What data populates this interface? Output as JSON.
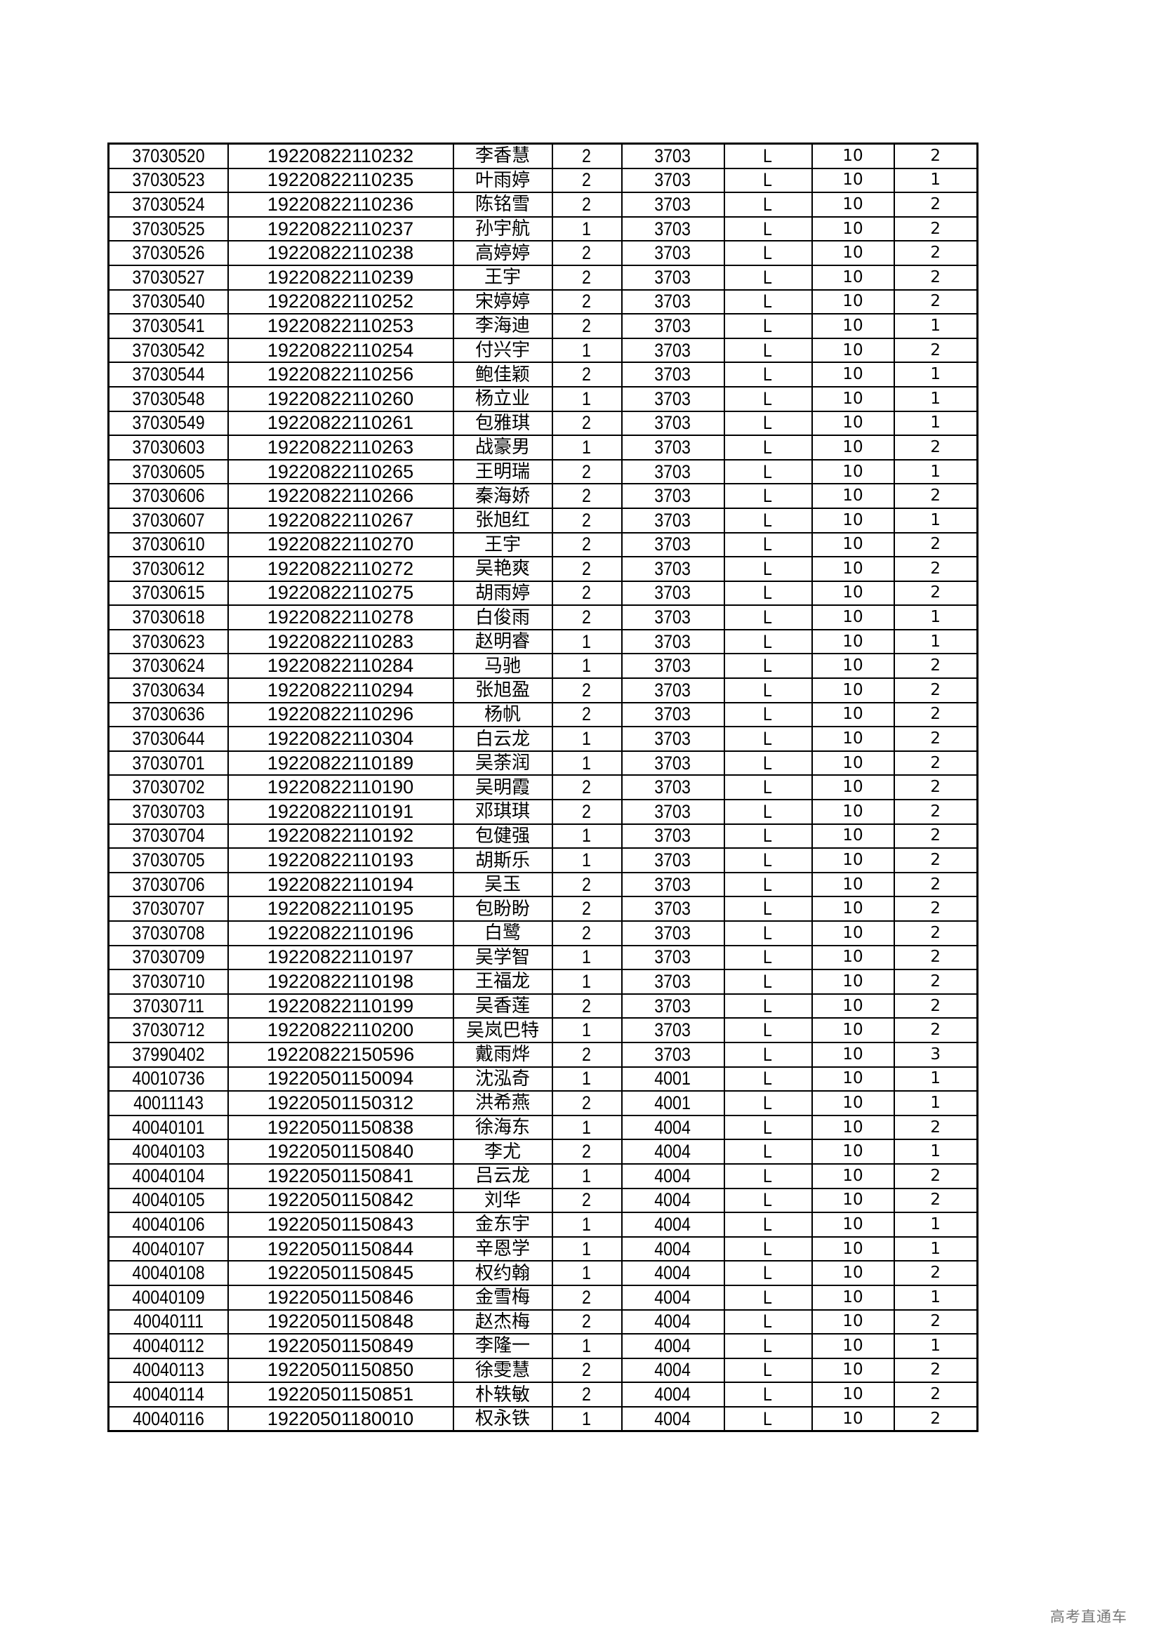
{
  "table": {
    "rows": [
      [
        "37030520",
        "19220822110232",
        "李香慧",
        "2",
        "3703",
        "L",
        "10",
        "2"
      ],
      [
        "37030523",
        "19220822110235",
        "叶雨婷",
        "2",
        "3703",
        "L",
        "10",
        "1"
      ],
      [
        "37030524",
        "19220822110236",
        "陈铭雪",
        "2",
        "3703",
        "L",
        "10",
        "2"
      ],
      [
        "37030525",
        "19220822110237",
        "孙宇航",
        "1",
        "3703",
        "L",
        "10",
        "2"
      ],
      [
        "37030526",
        "19220822110238",
        "高婷婷",
        "2",
        "3703",
        "L",
        "10",
        "2"
      ],
      [
        "37030527",
        "19220822110239",
        "王宇",
        "2",
        "3703",
        "L",
        "10",
        "2"
      ],
      [
        "37030540",
        "19220822110252",
        "宋婷婷",
        "2",
        "3703",
        "L",
        "10",
        "2"
      ],
      [
        "37030541",
        "19220822110253",
        "李海迪",
        "2",
        "3703",
        "L",
        "10",
        "1"
      ],
      [
        "37030542",
        "19220822110254",
        "付兴宇",
        "1",
        "3703",
        "L",
        "10",
        "2"
      ],
      [
        "37030544",
        "19220822110256",
        "鲍佳颖",
        "2",
        "3703",
        "L",
        "10",
        "1"
      ],
      [
        "37030548",
        "19220822110260",
        "杨立业",
        "1",
        "3703",
        "L",
        "10",
        "1"
      ],
      [
        "37030549",
        "19220822110261",
        "包雅琪",
        "2",
        "3703",
        "L",
        "10",
        "1"
      ],
      [
        "37030603",
        "19220822110263",
        "战豪男",
        "1",
        "3703",
        "L",
        "10",
        "2"
      ],
      [
        "37030605",
        "19220822110265",
        "王明瑞",
        "2",
        "3703",
        "L",
        "10",
        "1"
      ],
      [
        "37030606",
        "19220822110266",
        "秦海娇",
        "2",
        "3703",
        "L",
        "10",
        "2"
      ],
      [
        "37030607",
        "19220822110267",
        "张旭红",
        "2",
        "3703",
        "L",
        "10",
        "1"
      ],
      [
        "37030610",
        "19220822110270",
        "王宇",
        "2",
        "3703",
        "L",
        "10",
        "2"
      ],
      [
        "37030612",
        "19220822110272",
        "吴艳爽",
        "2",
        "3703",
        "L",
        "10",
        "2"
      ],
      [
        "37030615",
        "19220822110275",
        "胡雨婷",
        "2",
        "3703",
        "L",
        "10",
        "2"
      ],
      [
        "37030618",
        "19220822110278",
        "白俊雨",
        "2",
        "3703",
        "L",
        "10",
        "1"
      ],
      [
        "37030623",
        "19220822110283",
        "赵明睿",
        "1",
        "3703",
        "L",
        "10",
        "1"
      ],
      [
        "37030624",
        "19220822110284",
        "马驰",
        "1",
        "3703",
        "L",
        "10",
        "2"
      ],
      [
        "37030634",
        "19220822110294",
        "张旭盈",
        "2",
        "3703",
        "L",
        "10",
        "2"
      ],
      [
        "37030636",
        "19220822110296",
        "杨帆",
        "2",
        "3703",
        "L",
        "10",
        "2"
      ],
      [
        "37030644",
        "19220822110304",
        "白云龙",
        "1",
        "3703",
        "L",
        "10",
        "2"
      ],
      [
        "37030701",
        "19220822110189",
        "吴荼润",
        "1",
        "3703",
        "L",
        "10",
        "2"
      ],
      [
        "37030702",
        "19220822110190",
        "吴明霞",
        "2",
        "3703",
        "L",
        "10",
        "2"
      ],
      [
        "37030703",
        "19220822110191",
        "邓琪琪",
        "2",
        "3703",
        "L",
        "10",
        "2"
      ],
      [
        "37030704",
        "19220822110192",
        "包健强",
        "1",
        "3703",
        "L",
        "10",
        "2"
      ],
      [
        "37030705",
        "19220822110193",
        "胡斯乐",
        "1",
        "3703",
        "L",
        "10",
        "2"
      ],
      [
        "37030706",
        "19220822110194",
        "吴玉",
        "2",
        "3703",
        "L",
        "10",
        "2"
      ],
      [
        "37030707",
        "19220822110195",
        "包盼盼",
        "2",
        "3703",
        "L",
        "10",
        "2"
      ],
      [
        "37030708",
        "19220822110196",
        "白鹭",
        "2",
        "3703",
        "L",
        "10",
        "2"
      ],
      [
        "37030709",
        "19220822110197",
        "吴学智",
        "1",
        "3703",
        "L",
        "10",
        "2"
      ],
      [
        "37030710",
        "19220822110198",
        "王福龙",
        "1",
        "3703",
        "L",
        "10",
        "2"
      ],
      [
        "37030711",
        "19220822110199",
        "吴香莲",
        "2",
        "3703",
        "L",
        "10",
        "2"
      ],
      [
        "37030712",
        "19220822110200",
        "吴岚巴特",
        "1",
        "3703",
        "L",
        "10",
        "2"
      ],
      [
        "37990402",
        "19220822150596",
        "戴雨烨",
        "2",
        "3703",
        "L",
        "10",
        "3"
      ],
      [
        "40010736",
        "19220501150094",
        "沈泓奇",
        "1",
        "4001",
        "L",
        "10",
        "1"
      ],
      [
        "40011143",
        "19220501150312",
        "洪希燕",
        "2",
        "4001",
        "L",
        "10",
        "1"
      ],
      [
        "40040101",
        "19220501150838",
        "徐海东",
        "1",
        "4004",
        "L",
        "10",
        "2"
      ],
      [
        "40040103",
        "19220501150840",
        "李尤",
        "2",
        "4004",
        "L",
        "10",
        "1"
      ],
      [
        "40040104",
        "19220501150841",
        "吕云龙",
        "1",
        "4004",
        "L",
        "10",
        "2"
      ],
      [
        "40040105",
        "19220501150842",
        "刘华",
        "2",
        "4004",
        "L",
        "10",
        "2"
      ],
      [
        "40040106",
        "19220501150843",
        "金东宇",
        "1",
        "4004",
        "L",
        "10",
        "1"
      ],
      [
        "40040107",
        "19220501150844",
        "辛恩学",
        "1",
        "4004",
        "L",
        "10",
        "1"
      ],
      [
        "40040108",
        "19220501150845",
        "权约翰",
        "1",
        "4004",
        "L",
        "10",
        "2"
      ],
      [
        "40040109",
        "19220501150846",
        "金雪梅",
        "2",
        "4004",
        "L",
        "10",
        "1"
      ],
      [
        "40040111",
        "19220501150848",
        "赵杰梅",
        "2",
        "4004",
        "L",
        "10",
        "2"
      ],
      [
        "40040112",
        "19220501150849",
        "李隆一",
        "1",
        "4004",
        "L",
        "10",
        "1"
      ],
      [
        "40040113",
        "19220501150850",
        "徐雯慧",
        "2",
        "4004",
        "L",
        "10",
        "2"
      ],
      [
        "40040114",
        "19220501150851",
        "朴轶敏",
        "2",
        "4004",
        "L",
        "10",
        "2"
      ],
      [
        "40040116",
        "19220501180010",
        "权永铁",
        "1",
        "4004",
        "L",
        "10",
        "2"
      ]
    ]
  },
  "watermark": "高考直通车"
}
